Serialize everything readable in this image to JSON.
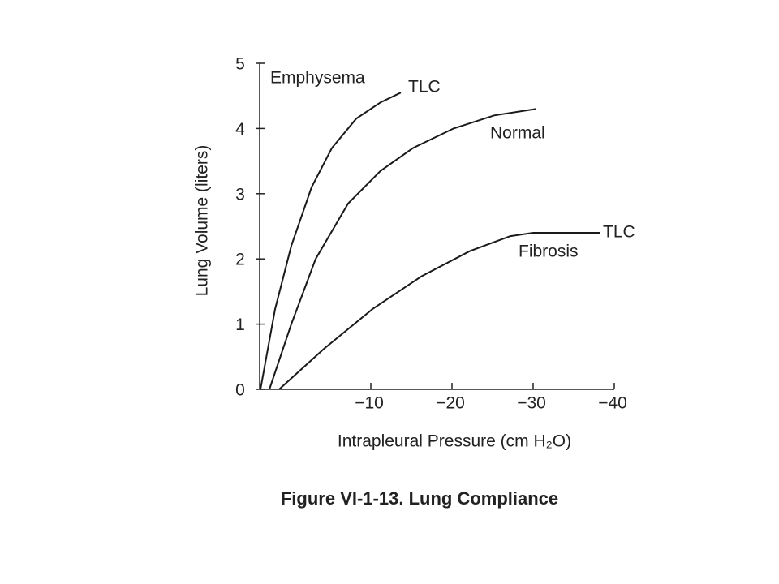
{
  "chart_data": {
    "type": "line",
    "caption": "Figure VI-1-13. Lung Compliance",
    "x_label": "Intrapleural Pressure (cm H₂O)",
    "y_label": "Lung Volume (liters)",
    "xlim": [
      3.7,
      -40
    ],
    "ylim": [
      0,
      5
    ],
    "xticks": [
      {
        "value": -10,
        "label": "−10"
      },
      {
        "value": -20,
        "label": "−20"
      },
      {
        "value": -30,
        "label": "−30"
      },
      {
        "value": -40,
        "label": "−40"
      }
    ],
    "yticks": [
      0,
      1,
      2,
      3,
      4,
      5
    ],
    "series": [
      {
        "name": "Emphysema",
        "color": "#1a1a1a",
        "end_label": "TLC",
        "x": [
          3.6,
          1.8,
          -0.2,
          -2.7,
          -5.2,
          -8.2,
          -11.2,
          -13.7
        ],
        "values": [
          0,
          1.23,
          2.2,
          3.1,
          3.7,
          4.15,
          4.4,
          4.55
        ]
      },
      {
        "name": "Normal",
        "color": "#1a1a1a",
        "x": [
          2.5,
          -0.2,
          -3.2,
          -7.2,
          -11.2,
          -15.2,
          -20.2,
          -25.2,
          -30.4
        ],
        "values": [
          0,
          1,
          2,
          2.85,
          3.35,
          3.7,
          4.0,
          4.2,
          4.3
        ]
      },
      {
        "name": "Fibrosis",
        "color": "#1a1a1a",
        "end_label": "TLC",
        "x": [
          1.3,
          -4.2,
          -10.2,
          -16.2,
          -22.2,
          -27.2,
          -30,
          -38.2
        ],
        "values": [
          0,
          0.62,
          1.23,
          1.73,
          2.12,
          2.35,
          2.4,
          2.4
        ]
      }
    ]
  }
}
